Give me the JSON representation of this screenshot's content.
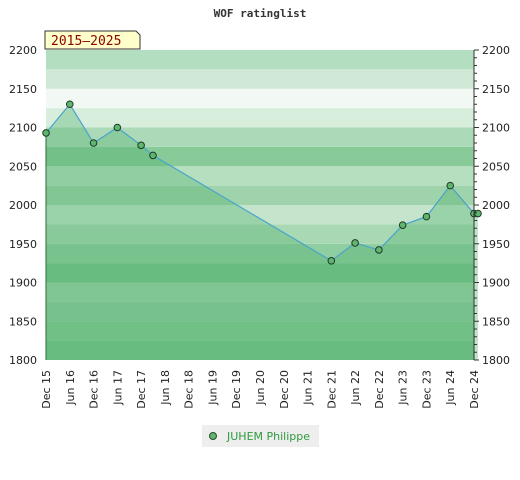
{
  "chart_data": {
    "type": "area",
    "title": "WOF ratinglist",
    "period_label": "2015–2025",
    "ylim": [
      1800,
      2200
    ],
    "y_ticks": [
      1800,
      1850,
      1900,
      1950,
      2000,
      2050,
      2100,
      2150,
      2200
    ],
    "x_ticks": [
      "Dec 15",
      "Jun 16",
      "Dec 16",
      "Jun 17",
      "Dec 17",
      "Jun 18",
      "Dec 18",
      "Jun 19",
      "Dec 19",
      "Jun 20",
      "Dec 20",
      "Jun 21",
      "Dec 21",
      "Jun 22",
      "Dec 22",
      "Jun 23",
      "Dec 23",
      "Jun 24",
      "Dec 24"
    ],
    "series": [
      {
        "name": "JUHEM Philippe",
        "points": [
          {
            "x": "Dec 15",
            "y": 2093
          },
          {
            "x": "Jun 16",
            "y": 2130
          },
          {
            "x": "Dec 16",
            "y": 2080
          },
          {
            "x": "Jun 17",
            "y": 2100
          },
          {
            "x": "Dec 17",
            "y": 2077
          },
          {
            "x": "Mar 18",
            "y": 2064
          },
          {
            "x": "Dec 21",
            "y": 1928
          },
          {
            "x": "Jun 22",
            "y": 1951
          },
          {
            "x": "Dec 22",
            "y": 1942
          },
          {
            "x": "Jun 23",
            "y": 1974
          },
          {
            "x": "Dec 23",
            "y": 1985
          },
          {
            "x": "Jun 24",
            "y": 2025
          },
          {
            "x": "Dec 24",
            "y": 1989
          },
          {
            "x": "Dec 24",
            "y": 1989
          }
        ]
      }
    ],
    "grid": true,
    "legend": "bottom-center"
  },
  "colors": {
    "line": "#4aa3cc",
    "marker": "#5fb56f",
    "area": "#4caf6a"
  }
}
